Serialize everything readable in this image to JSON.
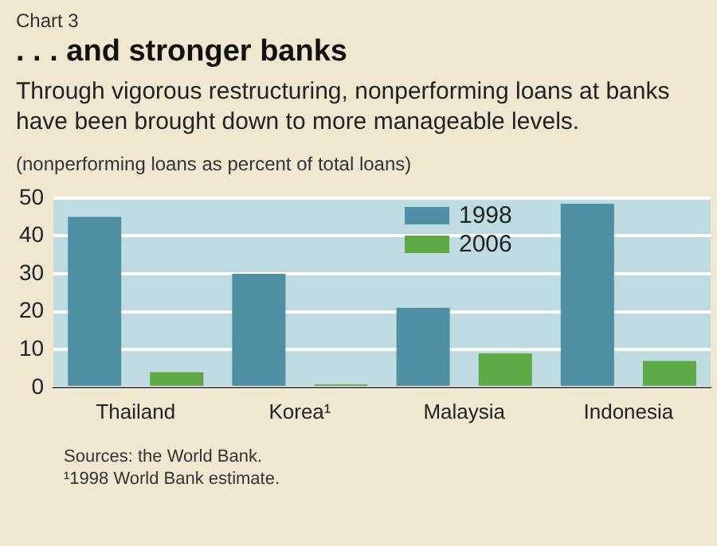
{
  "chart_data": {
    "type": "bar",
    "subtitle": "Chart 3",
    "title": ". . . and stronger banks",
    "annotations": [
      "Through vigorous restructuring, nonperforming loans at banks have been brought down to more manageable levels.",
      "Sources: the World Bank.",
      "¹1998 World Bank estimate."
    ],
    "ylabel": "(nonperforming loans as percent of total loans)",
    "categories": [
      "Thailand",
      "Korea¹",
      "Malaysia",
      "Indonesia"
    ],
    "series": [
      {
        "name": "1998",
        "color": "#4e8fa3",
        "values": [
          45,
          30,
          21,
          48.5
        ]
      },
      {
        "name": "2006",
        "color": "#5ea845",
        "values": [
          4,
          0.8,
          9,
          7
        ]
      }
    ],
    "ylim": [
      0,
      50
    ],
    "yticks": [
      0,
      10,
      20,
      30,
      40,
      50
    ],
    "grid": "y",
    "legend": "top right"
  }
}
